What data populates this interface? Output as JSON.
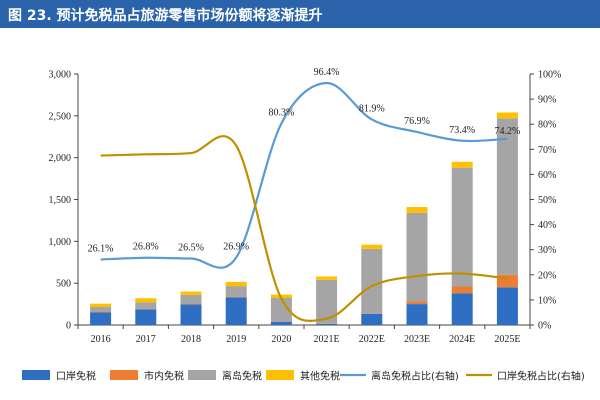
{
  "figure": {
    "title": "图 23. 预计免税品占旅游零售市场份额将逐渐提升"
  },
  "colors": {
    "title_bg": "#2a63a9",
    "kouan": "#2e6fc4",
    "shinei": "#ed7d31",
    "lidao": "#a5a5a5",
    "qita": "#ffc000",
    "line_lidao": "#5b9bd5",
    "line_kouan": "#bf9000"
  },
  "chart_data": {
    "type": "bar",
    "stacked": true,
    "categories": [
      "2016",
      "2017",
      "2018",
      "2019",
      "2020",
      "2021E",
      "2022E",
      "2023E",
      "2024E",
      "2025E"
    ],
    "ylim": [
      0,
      3000
    ],
    "y_ticks": [
      "0",
      "500",
      "1,000",
      "1,500",
      "2,000",
      "2,500",
      "3,000"
    ],
    "y2lim": [
      0,
      100
    ],
    "y2_ticks": [
      "0%",
      "10%",
      "20%",
      "30%",
      "40%",
      "50%",
      "60%",
      "70%",
      "80%",
      "90%",
      "100%"
    ],
    "grid": false,
    "legend_position": "bottom",
    "series": [
      {
        "name": "口岸免税",
        "axis": "left",
        "type": "bar",
        "values": [
          150,
          185,
          245,
          330,
          40,
          15,
          135,
          250,
          380,
          450
        ]
      },
      {
        "name": "市内免税",
        "axis": "left",
        "type": "bar",
        "values": [
          5,
          5,
          5,
          5,
          3,
          5,
          5,
          30,
          80,
          150
        ]
      },
      {
        "name": "离岛免税",
        "axis": "left",
        "type": "bar",
        "values": [
          60,
          80,
          110,
          130,
          280,
          520,
          770,
          1060,
          1420,
          1870
        ]
      },
      {
        "name": "其他免税",
        "axis": "left",
        "type": "bar",
        "values": [
          40,
          50,
          40,
          50,
          40,
          40,
          50,
          70,
          70,
          70
        ]
      },
      {
        "name": "离岛免税占比(右轴)",
        "axis": "right",
        "type": "line",
        "values": [
          26.1,
          26.8,
          26.5,
          26.9,
          80.3,
          96.4,
          81.9,
          76.9,
          73.4,
          74.2
        ],
        "labels": [
          "26.1%",
          "26.8%",
          "26.5%",
          "26.9%",
          "80.3%",
          "96.4%",
          "81.9%",
          "76.9%",
          "73.4%",
          "74.2%"
        ]
      },
      {
        "name": "口岸免税占比(右轴)",
        "axis": "right",
        "type": "line",
        "values": [
          67.5,
          68,
          68.5,
          71.5,
          10.5,
          2.5,
          15.5,
          19.5,
          20.5,
          18.5
        ]
      }
    ]
  }
}
